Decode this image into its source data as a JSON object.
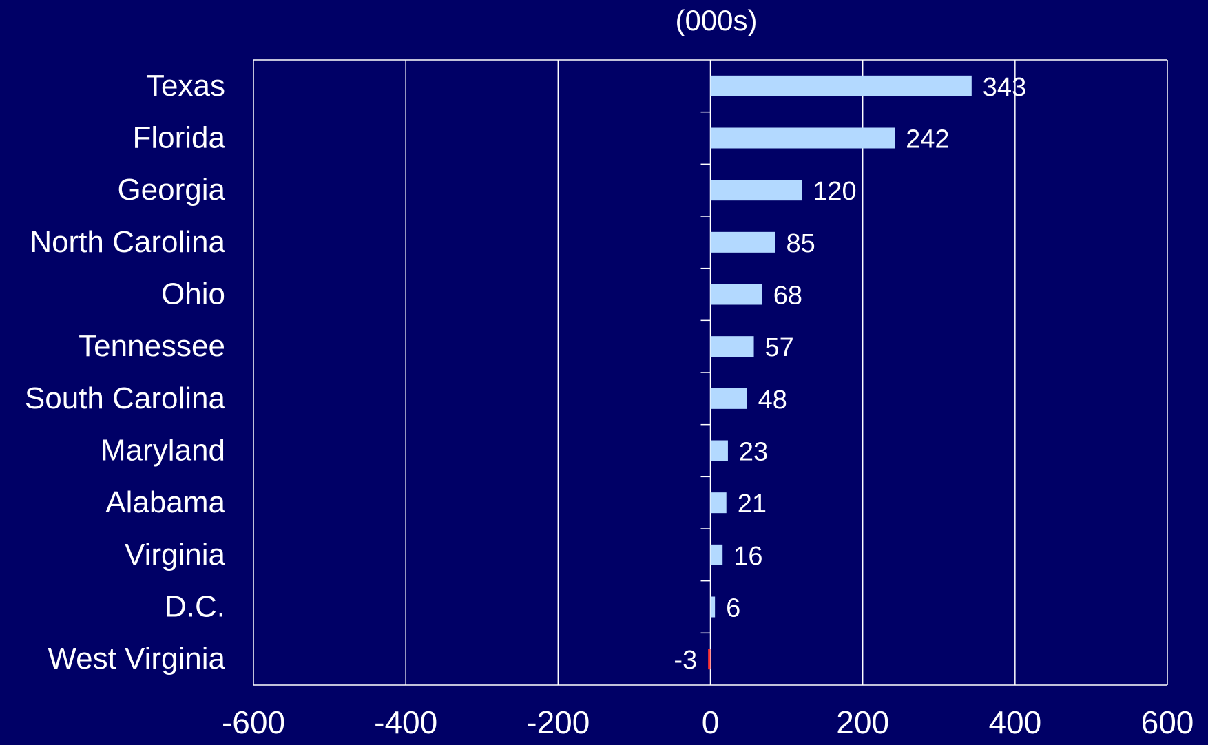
{
  "chart_data": {
    "type": "bar",
    "orientation": "horizontal",
    "subtitle": "(000s)",
    "categories": [
      "Texas",
      "Florida",
      "Georgia",
      "North Carolina",
      "Ohio",
      "Tennessee",
      "South Carolina",
      "Maryland",
      "Alabama",
      "Virginia",
      "D.C.",
      "West Virginia"
    ],
    "values": [
      343,
      242,
      120,
      85,
      68,
      57,
      48,
      23,
      21,
      16,
      6,
      -3
    ],
    "data_labels": [
      "343",
      "242",
      "120",
      "85",
      "68",
      "57",
      "48",
      "23",
      "21",
      "16",
      "6",
      "-3"
    ],
    "xlim": [
      -600,
      600
    ],
    "xticks": [
      -600,
      -400,
      -200,
      0,
      200,
      400,
      600
    ],
    "xtick_labels": [
      "-600",
      "-400",
      "-200",
      "0",
      "200",
      "400",
      "600"
    ],
    "grid": true,
    "legend": false,
    "colors": {
      "background": "#000066",
      "positive_bar": "#B3D9FF",
      "negative_bar": "#FF3333",
      "gridline": "#ffffff",
      "text": "#ffffff"
    }
  }
}
